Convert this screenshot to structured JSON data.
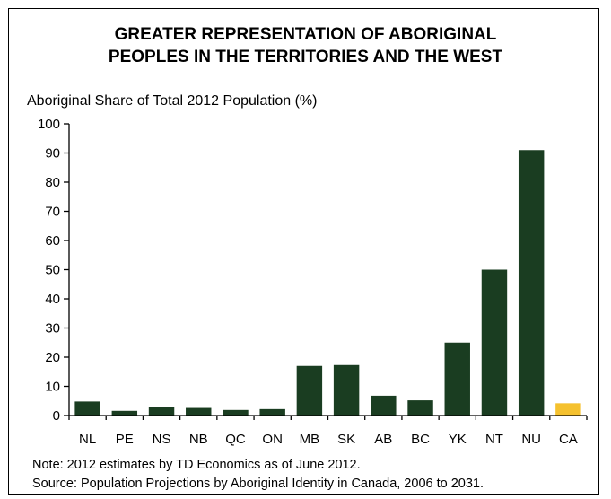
{
  "chart_data": {
    "type": "bar",
    "title_lines": [
      "GREATER REPRESENTATION OF ABORIGINAL",
      "PEOPLES IN THE TERRITORIES AND THE WEST"
    ],
    "ylabel": "Aboriginal Share of Total 2012 Population (%)",
    "xlabel": "",
    "ylim": [
      0,
      100
    ],
    "yticks": [
      0,
      10,
      20,
      30,
      40,
      50,
      60,
      70,
      80,
      90,
      100
    ],
    "categories": [
      "NL",
      "PE",
      "NS",
      "NB",
      "QC",
      "ON",
      "MB",
      "SK",
      "AB",
      "BC",
      "YK",
      "NT",
      "NU",
      "CA"
    ],
    "values": [
      4.8,
      1.6,
      2.9,
      2.6,
      1.9,
      2.2,
      17.0,
      17.3,
      6.8,
      5.2,
      25.0,
      50.0,
      91.0,
      4.2
    ],
    "colors": {
      "default": "#1a3d21",
      "highlight": "#f5c12e"
    },
    "highlight_category": "CA",
    "grid": false,
    "legend": "none"
  },
  "notes": {
    "note": "Note: 2012 estimates by TD Economics as of June 2012.",
    "source": "Source: Population Projections by Aboriginal Identity in Canada, 2006 to 2031."
  }
}
